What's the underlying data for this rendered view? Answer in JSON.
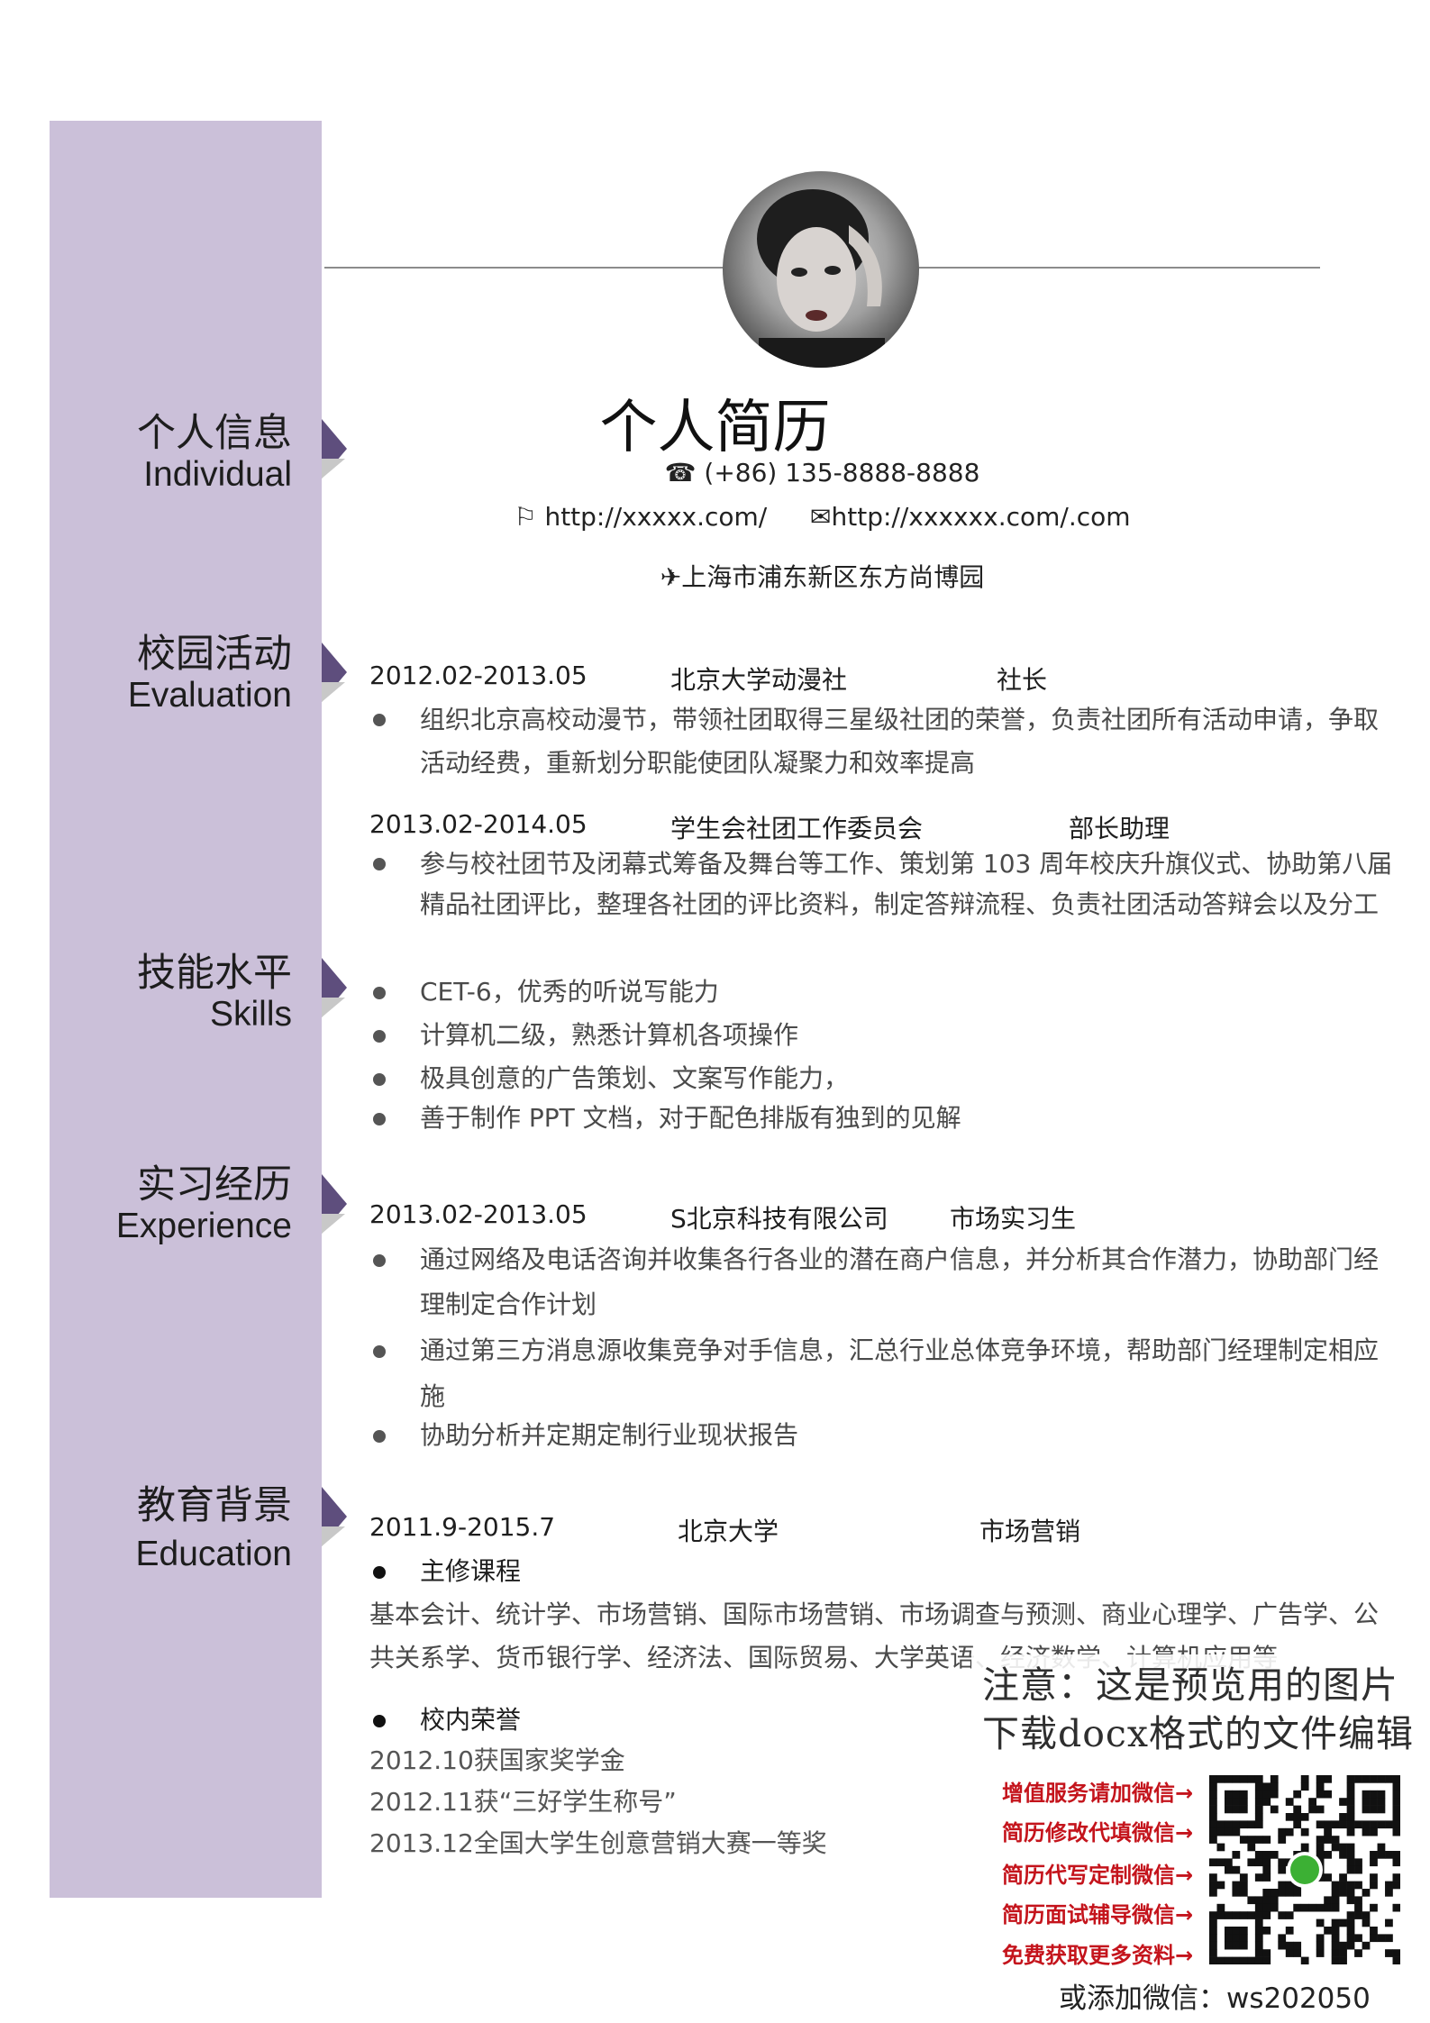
{
  "header": {
    "title": "个人简历",
    "phone_icon": "☎",
    "phone": "(+86) 135-8888-8888",
    "web_icon": "⚐",
    "website": "http://xxxxx.com/",
    "mail_icon": "✉",
    "email": "http://xxxxxx.com/.com",
    "addr_icon": "✈",
    "address": "上海市浦东新区东方尚博园"
  },
  "sections": {
    "individual": {
      "zh": "个人信息",
      "en": "Individual"
    },
    "evaluation": {
      "zh": "校园活动",
      "en": "Evaluation"
    },
    "skills": {
      "zh": "技能水平",
      "en": "Skills"
    },
    "experience": {
      "zh": "实习经历",
      "en": "Experience"
    },
    "education": {
      "zh": "教育背景",
      "en": "Education"
    }
  },
  "campus": [
    {
      "date": "2012.02-2013.05",
      "org": "北京大学动漫社",
      "role": "社长",
      "lines": [
        "组织北京高校动漫节，带领社团取得三星级社团的荣誉，负责社团所有活动申请，争取",
        "活动经费，重新划分职能使团队凝聚力和效率提高"
      ]
    },
    {
      "date": "2013.02-2014.05",
      "org": "学生会社团工作委员会",
      "role": "部长助理",
      "lines": [
        "参与校社团节及闭幕式筹备及舞台等工作、策划第 103 周年校庆升旗仪式、协助第八届",
        "精品社团评比，整理各社团的评比资料，制定答辩流程、负责社团活动答辩会以及分工"
      ]
    }
  ],
  "skills": [
    "CET-6，优秀的听说写能力",
    "计算机二级，熟悉计算机各项操作",
    "极具创意的广告策划、文案写作能力，",
    "善于制作 PPT 文档，对于配色排版有独到的见解"
  ],
  "experience": {
    "date": "2013.02-2013.05",
    "org": "S北京科技有限公司",
    "role": "市场实习生",
    "items": [
      [
        "通过网络及电话咨询并收集各行各业的潜在商户信息，并分析其合作潜力，协助部门经",
        "理制定合作计划"
      ],
      [
        "通过第三方消息源收集竞争对手信息，汇总行业总体竞争环境，帮助部门经理制定相应",
        "施"
      ],
      [
        "协助分析并定期定制行业现状报告"
      ]
    ]
  },
  "education": {
    "date": "2011.9-2015.7",
    "school": "北京大学",
    "major": "市场营销",
    "courses_title": "主修课程",
    "courses_lines": [
      "基本会计、统计学、市场营销、国际市场营销、市场调查与预测、商业心理学、广告学、公",
      "共关系学、货币银行学、经济法、国际贸易、大学英语、经济数学、计算机应用等"
    ],
    "honors_title": "校内荣誉",
    "honors": [
      "2012.10获国家奖学金",
      "2012.11获“三好学生称号”",
      "2013.12全国大学生创意营销大赛一等奖"
    ]
  },
  "watermark": {
    "line1": "注意：这是预览用的图片",
    "line2": "下载docx格式的文件编辑",
    "promos": [
      "增值服务请加微信→",
      "简历修改代填微信→",
      "简历代写定制微信→",
      "简历面试辅导微信→",
      "免费获取更多资料→"
    ],
    "wechat": "或添加微信：ws202050"
  }
}
